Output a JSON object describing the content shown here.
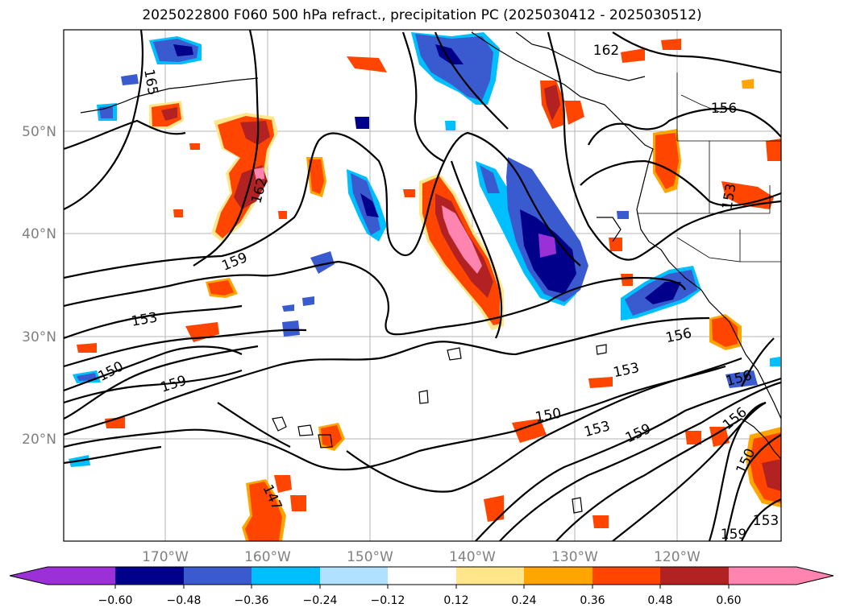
{
  "title": "2025022800 F060 500 hPa refract., precipitation PC (2025030412 - 2025030512)",
  "map": {
    "lat_labels": [
      "50°N",
      "40°N",
      "30°N",
      "20°N"
    ],
    "lon_labels": [
      "170°W",
      "160°W",
      "150°W",
      "140°W",
      "130°W",
      "120°W"
    ],
    "contour_labels": [
      "162",
      "165",
      "156",
      "153",
      "162",
      "159",
      "153",
      "150",
      "159",
      "156",
      "153",
      "150",
      "153",
      "159",
      "156",
      "150",
      "147",
      "153",
      "159",
      "156"
    ]
  },
  "colorbar": {
    "tick_labels": [
      "−0.60",
      "−0.48",
      "−0.36",
      "−0.24",
      "−0.12",
      "0.12",
      "0.24",
      "0.36",
      "0.48",
      "0.60"
    ],
    "colors": [
      "#9b30d9",
      "#00008b",
      "#3a5bd0",
      "#00bfff",
      "#b0e2ff",
      "#ffffff",
      "#ffe68a",
      "#ffa500",
      "#ff4500",
      "#b22222",
      "#ff85b0"
    ]
  }
}
